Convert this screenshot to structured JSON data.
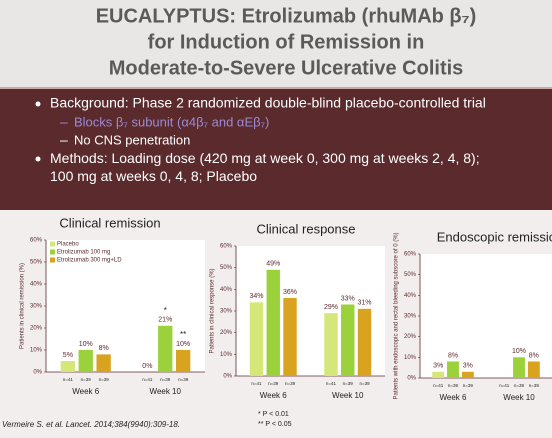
{
  "slide": {
    "title": [
      "EUCALYPTUS: Etrolizumab (rhuMAb β₇)",
      "for Induction of Remission in",
      "Moderate-to-Severe Ulcerative Colitis"
    ],
    "bullets": [
      {
        "text": "Background: Phase 2 randomized double-blind placebo-controlled trial",
        "sub": [
          "Blocks β₇ subunit (α4β₇ and αEβ₇)",
          "No CNS penetration"
        ]
      },
      {
        "text": "Methods: Loading dose (420 mg at week 0, 300 mg at weeks 2, 4, 8); 100 mg at weeks 0, 4, 8; Placebo",
        "sub": []
      }
    ],
    "citation": "Vermeire S. et al. Lancet. 2014;384(9940):309-18.",
    "footnotes": [
      "* P < 0.01",
      "** P < 0.05"
    ]
  },
  "chart_data": [
    {
      "type": "bar",
      "title": "Clinical remission",
      "y_label": "Patients in clinical remission (%)",
      "categories": [
        "Week 6",
        "Week 10"
      ],
      "n_labels": [
        "n=41",
        "n=39",
        "n=39"
      ],
      "legend": true,
      "ylim": [
        0,
        60
      ],
      "yticks": [
        {
          "value": 0,
          "label": "0%"
        },
        {
          "value": 10,
          "label": "10%"
        },
        {
          "value": 20,
          "label": "20%"
        },
        {
          "value": 30,
          "label": "30%"
        },
        {
          "value": 40,
          "label": "40%"
        },
        {
          "value": 50,
          "label": "50%"
        },
        {
          "value": 60,
          "label": "60%"
        }
      ],
      "series": [
        {
          "name": "Placebo",
          "color": "#d6e77a",
          "values": [
            5,
            0
          ],
          "value_labels": [
            "5%",
            "0%"
          ],
          "markers": [
            null,
            null
          ]
        },
        {
          "name": "Etrolizumab 100 mg",
          "color": "#9bd13a",
          "values": [
            10,
            21
          ],
          "value_labels": [
            "10%",
            "21%"
          ],
          "markers": [
            null,
            "*"
          ]
        },
        {
          "name": "Etrolizumab 300 mg+LD",
          "color": "#d9a21f",
          "values": [
            8,
            10
          ],
          "value_labels": [
            "8%",
            "10%"
          ],
          "markers": [
            null,
            "**"
          ]
        }
      ]
    },
    {
      "type": "bar",
      "title": "Clinical response",
      "y_label": "Patients in clinical response (%)",
      "categories": [
        "Week 6",
        "Week 10"
      ],
      "n_labels": [
        "n=41",
        "n=39",
        "n=39"
      ],
      "legend": false,
      "ylim": [
        0,
        60
      ],
      "yticks": [
        {
          "value": 0,
          "label": "0%"
        },
        {
          "value": 10,
          "label": "10%"
        },
        {
          "value": 20,
          "label": "20%"
        },
        {
          "value": 30,
          "label": "30%"
        },
        {
          "value": 40,
          "label": "40%"
        },
        {
          "value": 50,
          "label": "50%"
        },
        {
          "value": 60,
          "label": "60%"
        }
      ],
      "series": [
        {
          "name": "Placebo",
          "color": "#d6e77a",
          "values": [
            34,
            29
          ],
          "value_labels": [
            "34%",
            "29%"
          ],
          "markers": [
            null,
            null
          ]
        },
        {
          "name": "Etrolizumab 100 mg",
          "color": "#9bd13a",
          "values": [
            49,
            33
          ],
          "value_labels": [
            "49%",
            "33%"
          ],
          "markers": [
            null,
            null
          ]
        },
        {
          "name": "Etrolizumab 300 mg+LD",
          "color": "#d9a21f",
          "values": [
            36,
            31
          ],
          "value_labels": [
            "36%",
            "31%"
          ],
          "markers": [
            null,
            null
          ]
        }
      ]
    },
    {
      "type": "bar",
      "title": "Endoscopic remission",
      "y_label": "Patients with endoscopic and rectal bleeding subscore of 0 (%)",
      "categories": [
        "Week 6",
        "Week 10"
      ],
      "n_labels": [
        "n=41",
        "n=39",
        "n=39"
      ],
      "legend": false,
      "ylim": [
        0,
        60
      ],
      "yticks": [
        {
          "value": 0,
          "label": "0%"
        },
        {
          "value": 10,
          "label": "10%"
        },
        {
          "value": 20,
          "label": "20%"
        },
        {
          "value": 30,
          "label": "30%"
        },
        {
          "value": 40,
          "label": "40%"
        },
        {
          "value": 50,
          "label": "50%"
        },
        {
          "value": 60,
          "label": "60%"
        }
      ],
      "series": [
        {
          "name": "Placebo",
          "color": "#d6e77a",
          "values": [
            3,
            0
          ],
          "value_labels": [
            "3%",
            null
          ],
          "markers": [
            null,
            null
          ]
        },
        {
          "name": "Etrolizumab 100 mg",
          "color": "#9bd13a",
          "values": [
            8,
            10
          ],
          "value_labels": [
            "8%",
            "10%"
          ],
          "markers": [
            null,
            null
          ]
        },
        {
          "name": "Etrolizumab 300 mg+LD",
          "color": "#d9a21f",
          "values": [
            3,
            8
          ],
          "value_labels": [
            "3%",
            "8%"
          ],
          "markers": [
            null,
            null
          ]
        }
      ]
    }
  ]
}
